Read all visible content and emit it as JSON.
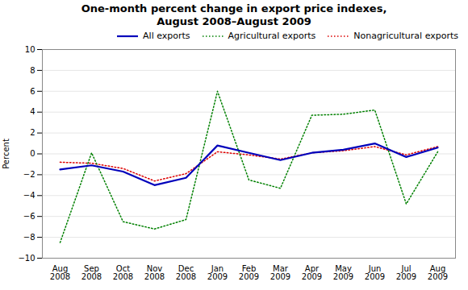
{
  "chart_data": {
    "type": "line",
    "title": "One-month percent change in export price indexes,\nAugust 2008–August 2009",
    "y_label": "Percent",
    "categories": [
      "Aug\n2008",
      "Sep\n2008",
      "Oct\n2008",
      "Nov\n2008",
      "Dec\n2008",
      "Jan\n2009",
      "Feb\n2009",
      "Mar\n2009",
      "Apr\n2009",
      "May\n2009",
      "Jun\n2009",
      "Jul\n2009",
      "Aug\n2009"
    ],
    "series": [
      {
        "name": "All exports",
        "color": "#0000bb",
        "line_style": "solid",
        "values": [
          -1.5,
          -1.1,
          -1.7,
          -3.0,
          -2.3,
          0.8,
          0.1,
          -0.6,
          0.1,
          0.4,
          1.0,
          -0.3,
          0.6
        ]
      },
      {
        "name": "Agricultural exports",
        "color": "#008000",
        "line_style": "dotted",
        "values": [
          -8.5,
          0.1,
          -6.5,
          -7.2,
          -6.3,
          6.0,
          -2.5,
          -3.3,
          3.7,
          3.8,
          4.2,
          -4.8,
          0.2
        ]
      },
      {
        "name": "Nonagricultural exports",
        "color": "#dd0000",
        "line_style": "dotted",
        "values": [
          -0.8,
          -0.9,
          -1.4,
          -2.6,
          -1.9,
          0.2,
          -0.1,
          -0.5,
          0.1,
          0.3,
          0.7,
          -0.1,
          0.7
        ]
      }
    ],
    "ylim": [
      -10,
      10
    ],
    "yticks": [
      -10,
      -8,
      -6,
      -4,
      -2,
      0,
      2,
      4,
      6,
      8,
      10
    ],
    "grid": true,
    "legend": "upper right"
  }
}
